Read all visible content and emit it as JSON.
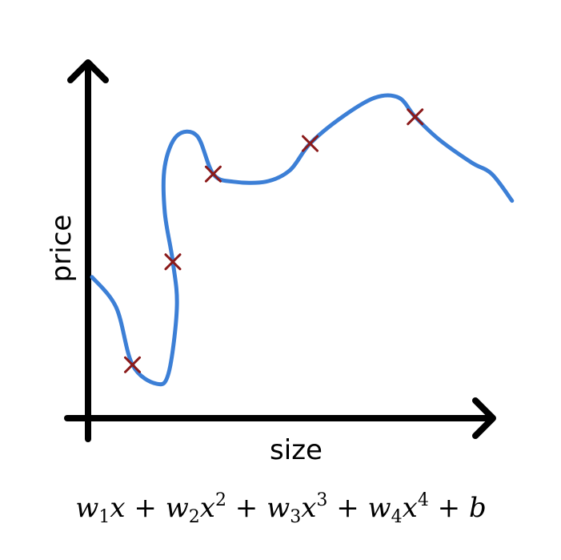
{
  "chart_data": {
    "type": "line",
    "xlabel": "size",
    "ylabel": "price",
    "colors": {
      "curve": "#3c7fd6",
      "marker": "#8b1a1a",
      "axis": "#000000"
    },
    "points": [
      {
        "x": 1.0,
        "y": 1.0
      },
      {
        "x": 2.0,
        "y": 3.7
      },
      {
        "x": 3.0,
        "y": 6.0
      },
      {
        "x": 5.4,
        "y": 6.8
      },
      {
        "x": 8.0,
        "y": 7.5
      }
    ],
    "curve": [
      {
        "x": 0.0,
        "y": 3.3
      },
      {
        "x": 0.6,
        "y": 2.5
      },
      {
        "x": 1.0,
        "y": 1.0
      },
      {
        "x": 1.6,
        "y": 0.5
      },
      {
        "x": 1.9,
        "y": 0.8
      },
      {
        "x": 2.1,
        "y": 2.5
      },
      {
        "x": 2.0,
        "y": 3.7
      },
      {
        "x": 1.8,
        "y": 5.0
      },
      {
        "x": 1.8,
        "y": 6.2
      },
      {
        "x": 2.1,
        "y": 7.0
      },
      {
        "x": 2.6,
        "y": 7.0
      },
      {
        "x": 3.0,
        "y": 6.0
      },
      {
        "x": 3.5,
        "y": 5.8
      },
      {
        "x": 4.3,
        "y": 5.8
      },
      {
        "x": 4.9,
        "y": 6.1
      },
      {
        "x": 5.4,
        "y": 6.8
      },
      {
        "x": 6.2,
        "y": 7.5
      },
      {
        "x": 7.0,
        "y": 8.0
      },
      {
        "x": 7.6,
        "y": 8.0
      },
      {
        "x": 8.0,
        "y": 7.5
      },
      {
        "x": 8.6,
        "y": 6.9
      },
      {
        "x": 9.4,
        "y": 6.3
      },
      {
        "x": 9.9,
        "y": 6.0
      },
      {
        "x": 10.4,
        "y": 5.3
      }
    ],
    "xlim": [
      -0.1,
      10.8
    ],
    "ylim": [
      -0.4,
      8.0
    ],
    "formula": {
      "terms": [
        {
          "coef": "w",
          "sub": "1",
          "var": "x",
          "sup": ""
        },
        {
          "coef": "w",
          "sub": "2",
          "var": "x",
          "sup": "2"
        },
        {
          "coef": "w",
          "sub": "3",
          "var": "x",
          "sup": "3"
        },
        {
          "coef": "w",
          "sub": "4",
          "var": "x",
          "sup": "4"
        }
      ],
      "plus": "+",
      "constant": "b"
    }
  }
}
